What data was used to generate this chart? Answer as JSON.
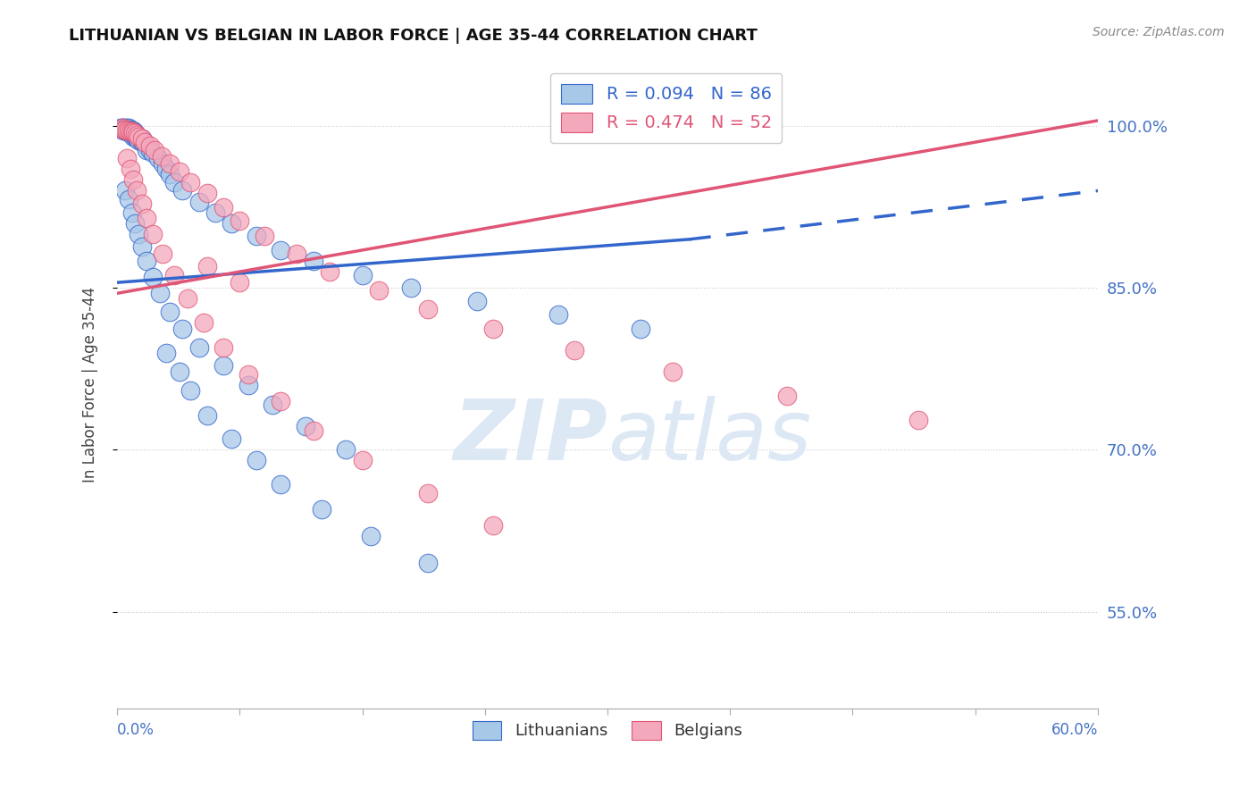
{
  "title": "LITHUANIAN VS BELGIAN IN LABOR FORCE | AGE 35-44 CORRELATION CHART",
  "source": "Source: ZipAtlas.com",
  "ylabel": "In Labor Force | Age 35-44",
  "ytick_labels": [
    "55.0%",
    "70.0%",
    "85.0%",
    "100.0%"
  ],
  "ytick_values": [
    0.55,
    0.7,
    0.85,
    1.0
  ],
  "xlim": [
    0.0,
    0.6
  ],
  "ylim": [
    0.46,
    1.06
  ],
  "blue_color": "#a8c8e8",
  "pink_color": "#f4a8bc",
  "blue_line_color": "#3366cc",
  "pink_line_color": "#e05575",
  "grid_color": "#cccccc",
  "background_color": "#ffffff",
  "watermark_color": "#dde8f5",
  "blue_trend": [
    0.0,
    0.855,
    0.35,
    0.895
  ],
  "blue_dashed": [
    0.35,
    0.895,
    0.6,
    0.94
  ],
  "pink_trend": [
    0.0,
    0.845,
    0.6,
    1.005
  ],
  "blue_scatter_x": [
    0.002,
    0.003,
    0.003,
    0.004,
    0.004,
    0.004,
    0.005,
    0.005,
    0.005,
    0.006,
    0.006,
    0.006,
    0.006,
    0.007,
    0.007,
    0.007,
    0.007,
    0.008,
    0.008,
    0.008,
    0.009,
    0.009,
    0.009,
    0.01,
    0.01,
    0.01,
    0.01,
    0.011,
    0.011,
    0.011,
    0.012,
    0.012,
    0.013,
    0.013,
    0.014,
    0.015,
    0.015,
    0.016,
    0.018,
    0.018,
    0.02,
    0.022,
    0.025,
    0.028,
    0.03,
    0.032,
    0.035,
    0.04,
    0.05,
    0.06,
    0.07,
    0.085,
    0.1,
    0.12,
    0.15,
    0.18,
    0.22,
    0.27,
    0.32,
    0.005,
    0.007,
    0.009,
    0.011,
    0.013,
    0.015,
    0.018,
    0.022,
    0.026,
    0.032,
    0.04,
    0.05,
    0.065,
    0.08,
    0.095,
    0.115,
    0.14,
    0.03,
    0.038,
    0.045,
    0.055,
    0.07,
    0.085,
    0.1,
    0.125,
    0.155,
    0.19
  ],
  "blue_scatter_y": [
    0.998,
    0.998,
    0.997,
    0.998,
    0.997,
    0.996,
    0.998,
    0.997,
    0.996,
    0.998,
    0.997,
    0.996,
    0.995,
    0.998,
    0.997,
    0.996,
    0.994,
    0.997,
    0.995,
    0.994,
    0.996,
    0.995,
    0.993,
    0.996,
    0.994,
    0.992,
    0.99,
    0.994,
    0.992,
    0.99,
    0.992,
    0.988,
    0.99,
    0.987,
    0.988,
    0.988,
    0.985,
    0.985,
    0.982,
    0.978,
    0.978,
    0.975,
    0.97,
    0.965,
    0.96,
    0.955,
    0.948,
    0.94,
    0.93,
    0.92,
    0.91,
    0.898,
    0.885,
    0.875,
    0.862,
    0.85,
    0.838,
    0.825,
    0.812,
    0.94,
    0.932,
    0.92,
    0.91,
    0.9,
    0.888,
    0.875,
    0.86,
    0.845,
    0.828,
    0.812,
    0.795,
    0.778,
    0.76,
    0.742,
    0.722,
    0.7,
    0.79,
    0.772,
    0.755,
    0.732,
    0.71,
    0.69,
    0.668,
    0.645,
    0.62,
    0.595
  ],
  "pink_scatter_x": [
    0.003,
    0.004,
    0.005,
    0.006,
    0.007,
    0.008,
    0.009,
    0.01,
    0.011,
    0.012,
    0.013,
    0.015,
    0.017,
    0.02,
    0.023,
    0.027,
    0.032,
    0.038,
    0.045,
    0.055,
    0.065,
    0.075,
    0.09,
    0.11,
    0.13,
    0.16,
    0.19,
    0.23,
    0.28,
    0.34,
    0.41,
    0.49,
    0.006,
    0.008,
    0.01,
    0.012,
    0.015,
    0.018,
    0.022,
    0.028,
    0.035,
    0.043,
    0.053,
    0.065,
    0.08,
    0.1,
    0.12,
    0.15,
    0.19,
    0.23,
    0.055,
    0.075
  ],
  "pink_scatter_y": [
    0.998,
    0.997,
    0.997,
    0.996,
    0.996,
    0.995,
    0.995,
    0.994,
    0.993,
    0.992,
    0.99,
    0.988,
    0.985,
    0.982,
    0.978,
    0.972,
    0.965,
    0.958,
    0.948,
    0.938,
    0.925,
    0.912,
    0.898,
    0.882,
    0.865,
    0.848,
    0.83,
    0.812,
    0.792,
    0.772,
    0.75,
    0.728,
    0.97,
    0.96,
    0.95,
    0.94,
    0.928,
    0.915,
    0.9,
    0.882,
    0.862,
    0.84,
    0.818,
    0.795,
    0.77,
    0.745,
    0.718,
    0.69,
    0.66,
    0.63,
    0.87,
    0.855
  ]
}
